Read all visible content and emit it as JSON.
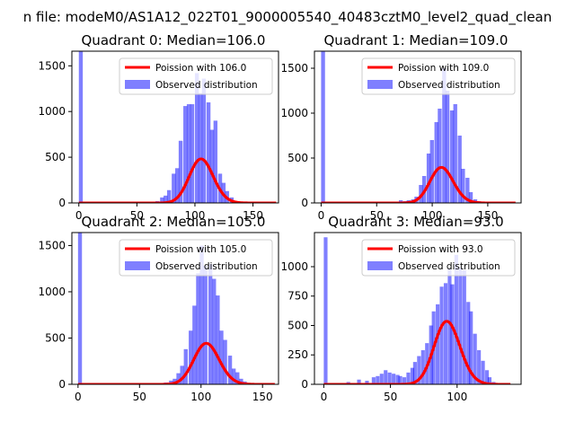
{
  "figure_title": "n file: modeM0/AS1A12_022T01_9000005540_40483cztM0_level2_quad_clean",
  "colors": {
    "observed_fill": "#0000ff",
    "observed_alpha": 0.5,
    "poisson_line": "#ff0000",
    "axes": "#000000",
    "background": "#ffffff"
  },
  "chart_data": [
    {
      "type": "bar",
      "title": "Quadrant 0: Median=106.0",
      "xlabel": "",
      "ylabel": "",
      "xlim": [
        -6,
        172
      ],
      "ylim": [
        0,
        1660
      ],
      "xticks": [
        0,
        50,
        100,
        150
      ],
      "yticks": [
        0,
        500,
        1000,
        1500
      ],
      "grid": false,
      "legend_position": "upper right",
      "series": [
        {
          "name": "Poission with 106.0",
          "kind": "line",
          "mean": 106.0,
          "x_range": [
            0,
            170
          ]
        },
        {
          "name": "Observed distribution",
          "kind": "hist",
          "bin_width": 3.4,
          "bins": [
            [
              0,
              1700
            ],
            [
              66,
              20
            ],
            [
              70,
              60
            ],
            [
              73,
              80
            ],
            [
              76,
              140
            ],
            [
              80,
              320
            ],
            [
              83,
              380
            ],
            [
              86,
              680
            ],
            [
              90,
              1060
            ],
            [
              93,
              1080
            ],
            [
              96,
              1080
            ],
            [
              100,
              1420
            ],
            [
              103,
              1200
            ],
            [
              106,
              1360
            ],
            [
              110,
              1100
            ],
            [
              113,
              800
            ],
            [
              116,
              900
            ],
            [
              120,
              320
            ],
            [
              123,
              220
            ],
            [
              126,
              130
            ],
            [
              130,
              60
            ],
            [
              133,
              20
            ]
          ]
        }
      ]
    },
    {
      "type": "bar",
      "title": "Quadrant 1: Median=109.0",
      "xlabel": "",
      "ylabel": "",
      "xlim": [
        -6,
        180
      ],
      "ylim": [
        0,
        1690
      ],
      "xticks": [
        0,
        50,
        100,
        150
      ],
      "yticks": [
        0,
        500,
        1000,
        1500
      ],
      "grid": false,
      "legend_position": "upper right",
      "series": [
        {
          "name": "Poission with 109.0",
          "kind": "line",
          "mean": 109.0,
          "x_range": [
            0,
            175
          ]
        },
        {
          "name": "Observed distribution",
          "kind": "hist",
          "bin_width": 3.5,
          "bins": [
            [
              0,
              1700
            ],
            [
              70,
              30
            ],
            [
              74,
              20
            ],
            [
              77,
              30
            ],
            [
              81,
              40
            ],
            [
              84,
              70
            ],
            [
              88,
              200
            ],
            [
              91,
              300
            ],
            [
              95,
              550
            ],
            [
              98,
              700
            ],
            [
              102,
              900
            ],
            [
              105,
              1050
            ],
            [
              109,
              1500
            ],
            [
              112,
              1250
            ],
            [
              116,
              1030
            ],
            [
              119,
              1100
            ],
            [
              123,
              750
            ],
            [
              126,
              380
            ],
            [
              130,
              280
            ],
            [
              133,
              120
            ],
            [
              137,
              40
            ],
            [
              140,
              20
            ]
          ]
        }
      ]
    },
    {
      "type": "bar",
      "title": "Quadrant 2: Median=105.0",
      "xlabel": "",
      "ylabel": "",
      "xlim": [
        -5,
        163
      ],
      "ylim": [
        0,
        1640
      ],
      "xticks": [
        0,
        50,
        100,
        150
      ],
      "yticks": [
        0,
        500,
        1000,
        1500
      ],
      "grid": false,
      "legend_position": "upper right",
      "series": [
        {
          "name": "Poission with 105.0",
          "kind": "line",
          "mean": 105.0,
          "x_range": [
            0,
            160
          ]
        },
        {
          "name": "Observed distribution",
          "kind": "hist",
          "bin_width": 3.2,
          "bins": [
            [
              0,
              1700
            ],
            [
              70,
              20
            ],
            [
              74,
              40
            ],
            [
              77,
              60
            ],
            [
              80,
              120
            ],
            [
              83,
              200
            ],
            [
              86,
              380
            ],
            [
              90,
              580
            ],
            [
              93,
              850
            ],
            [
              96,
              1200
            ],
            [
              99,
              1500
            ],
            [
              102,
              1280
            ],
            [
              106,
              1300
            ],
            [
              109,
              1140
            ],
            [
              112,
              960
            ],
            [
              115,
              580
            ],
            [
              118,
              480
            ],
            [
              122,
              310
            ],
            [
              125,
              170
            ],
            [
              128,
              130
            ],
            [
              131,
              60
            ],
            [
              134,
              30
            ]
          ]
        }
      ]
    },
    {
      "type": "bar",
      "title": "Quadrant 3: Median=93.0",
      "xlabel": "",
      "ylabel": "",
      "xlim": [
        -7,
        148
      ],
      "ylim": [
        0,
        1290
      ],
      "xticks": [
        0,
        50,
        100
      ],
      "yticks": [
        0,
        250,
        500,
        750,
        1000
      ],
      "grid": false,
      "legend_position": "upper right",
      "series": [
        {
          "name": "Poission with 93.0",
          "kind": "line",
          "mean": 93.0,
          "x_range": [
            0,
            140
          ]
        },
        {
          "name": "Observed distribution",
          "kind": "hist",
          "bin_width": 2.8,
          "bins": [
            [
              0,
              1250
            ],
            [
              17,
              20
            ],
            [
              25,
              40
            ],
            [
              31,
              30
            ],
            [
              36,
              60
            ],
            [
              39,
              70
            ],
            [
              42,
              90
            ],
            [
              45,
              120
            ],
            [
              48,
              100
            ],
            [
              51,
              90
            ],
            [
              54,
              80
            ],
            [
              56,
              70
            ],
            [
              59,
              60
            ],
            [
              62,
              100
            ],
            [
              65,
              140
            ],
            [
              67,
              190
            ],
            [
              70,
              240
            ],
            [
              73,
              290
            ],
            [
              76,
              350
            ],
            [
              79,
              500
            ],
            [
              81,
              620
            ],
            [
              84,
              680
            ],
            [
              87,
              830
            ],
            [
              90,
              860
            ],
            [
              93,
              980
            ],
            [
              95,
              850
            ],
            [
              98,
              1100
            ],
            [
              101,
              990
            ],
            [
              104,
              970
            ],
            [
              107,
              700
            ],
            [
              109,
              620
            ],
            [
              112,
              430
            ],
            [
              115,
              290
            ],
            [
              118,
              200
            ],
            [
              121,
              120
            ],
            [
              123,
              60
            ],
            [
              126,
              20
            ]
          ]
        }
      ]
    }
  ]
}
